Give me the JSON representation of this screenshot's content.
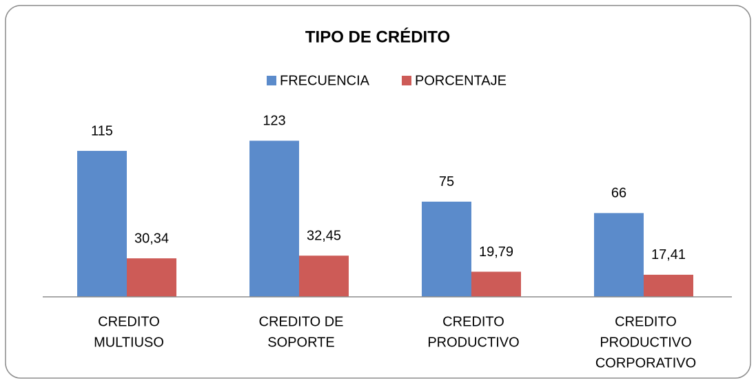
{
  "chart_data": {
    "type": "bar",
    "title": "TIPO DE CRÉDITO",
    "categories": [
      [
        "CREDITO",
        "MULTIUSO"
      ],
      [
        "CREDITO DE",
        "SOPORTE"
      ],
      [
        "CREDITO",
        "PRODUCTIVO"
      ],
      [
        "CREDITO",
        "PRODUCTIVO",
        "CORPORATIVO"
      ]
    ],
    "series": [
      {
        "name": "FRECUENCIA",
        "color": "#5b8bcb",
        "values": [
          115,
          123,
          75,
          66
        ]
      },
      {
        "name": "PORCENTAJE",
        "color": "#cd5b57",
        "values": [
          30.34,
          32.45,
          19.79,
          17.41
        ],
        "value_labels": [
          "30,34",
          "32,45",
          "19,79",
          "17,41"
        ]
      }
    ],
    "ylim": [
      0,
      140
    ],
    "legend": "top"
  }
}
